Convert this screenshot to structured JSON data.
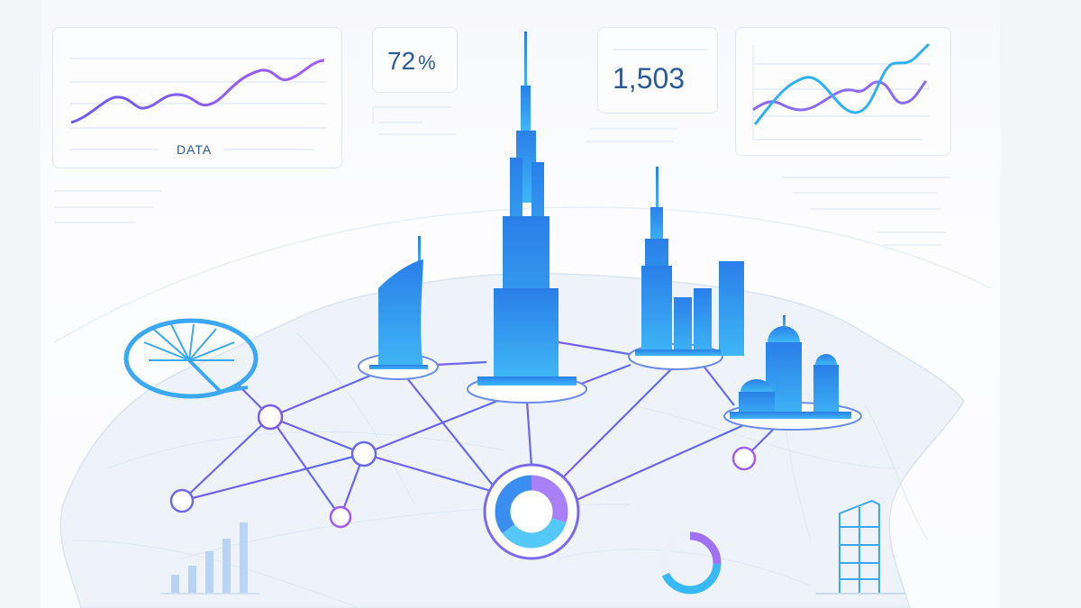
{
  "cards": {
    "line_chart_left": {
      "label": "DATA"
    },
    "percent_card": {
      "value": "72",
      "unit": "%"
    },
    "count_card": {
      "value": "1,503"
    }
  },
  "colors": {
    "purple": "#9b5cf5",
    "indigo": "#6a5cf0",
    "sky": "#2fb0f5",
    "building_blue": "#2f8ff0",
    "card_border": "#dde8f5",
    "text_blue": "#2a5a9a"
  },
  "landmarks": [
    "palm-island",
    "burj-al-arab",
    "burj-khalifa",
    "downtown-towers",
    "mosque"
  ],
  "donut_main": {
    "segments": [
      0.3,
      0.35,
      0.35
    ]
  },
  "donut_small": {
    "fill_fraction": 0.3
  },
  "bar_chart_bottom": {
    "values": [
      2,
      3,
      4.5,
      6,
      8.5
    ]
  }
}
